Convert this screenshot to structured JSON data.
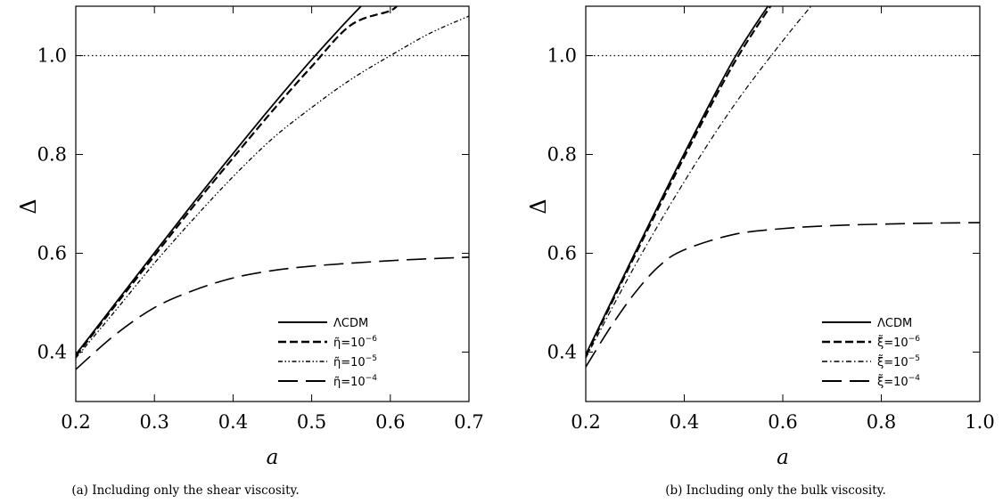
{
  "chart_data": [
    {
      "type": "line",
      "caption": "(a) Including only the shear viscosity.",
      "xlabel": "a",
      "ylabel": "Δ",
      "xlim": [
        0.2,
        0.7
      ],
      "ylim": [
        0.3,
        1.1
      ],
      "x_ticks": [
        "0.2",
        "0.3",
        "0.4",
        "0.5",
        "0.6",
        "0.7"
      ],
      "y_ticks": [
        "0.4",
        "0.6",
        "0.8",
        "1.0"
      ],
      "reference_line": {
        "y": 1.0,
        "style": "dotted"
      },
      "legend_position": "bottom-right",
      "series": [
        {
          "name": "ΛCDM",
          "base": "",
          "exp": "",
          "style": "solid",
          "x": [
            0.2,
            0.25,
            0.3,
            0.35,
            0.4,
            0.45,
            0.5,
            0.55,
            0.6
          ],
          "y": [
            0.395,
            0.498,
            0.601,
            0.703,
            0.802,
            0.899,
            0.992,
            1.079,
            1.16
          ]
        },
        {
          "name": "η̃=10−6",
          "base": "η̃=10",
          "exp": "−6",
          "style": "dashed",
          "x": [
            0.2,
            0.25,
            0.3,
            0.35,
            0.4,
            0.45,
            0.5,
            0.55,
            0.6,
            0.61
          ],
          "y": [
            0.392,
            0.494,
            0.595,
            0.696,
            0.793,
            0.888,
            0.978,
            1.062,
            1.091,
            1.105
          ]
        },
        {
          "name": "η̃=10−5",
          "base": "η̃=10",
          "exp": "−5",
          "style": "dashdotdot",
          "x": [
            0.2,
            0.25,
            0.3,
            0.35,
            0.4,
            0.45,
            0.5,
            0.55,
            0.6,
            0.65,
            0.7
          ],
          "y": [
            0.388,
            0.483,
            0.58,
            0.67,
            0.755,
            0.832,
            0.895,
            0.952,
            1.0,
            1.045,
            1.08
          ]
        },
        {
          "name": "η̃=10−4",
          "base": "η̃=10",
          "exp": "−4",
          "style": "longdash",
          "x": [
            0.2,
            0.25,
            0.3,
            0.35,
            0.4,
            0.45,
            0.5,
            0.55,
            0.6,
            0.65,
            0.7
          ],
          "y": [
            0.365,
            0.435,
            0.49,
            0.525,
            0.55,
            0.565,
            0.574,
            0.58,
            0.585,
            0.589,
            0.592
          ]
        }
      ]
    },
    {
      "type": "line",
      "caption": "(b) Including only the bulk viscosity.",
      "xlabel": "a",
      "ylabel": "Δ",
      "xlim": [
        0.2,
        1.0
      ],
      "ylim": [
        0.3,
        1.1
      ],
      "x_ticks": [
        "0.2",
        "0.4",
        "0.6",
        "0.8",
        "1.0"
      ],
      "y_ticks": [
        "0.4",
        "0.6",
        "0.8",
        "1.0"
      ],
      "reference_line": {
        "y": 1.0,
        "style": "dotted"
      },
      "legend_position": "bottom-right",
      "series": [
        {
          "name": "ΛCDM",
          "base": "",
          "exp": "",
          "style": "solid",
          "x": [
            0.2,
            0.3,
            0.4,
            0.5,
            0.58
          ],
          "y": [
            0.395,
            0.601,
            0.802,
            0.992,
            1.115
          ]
        },
        {
          "name": "ξ̃=10−6",
          "base": "ξ̃=10",
          "exp": "−6",
          "style": "dashed",
          "x": [
            0.2,
            0.3,
            0.4,
            0.5,
            0.585
          ],
          "y": [
            0.392,
            0.596,
            0.795,
            0.983,
            1.115
          ]
        },
        {
          "name": "ξ̃=10−5",
          "base": "ξ̃=10",
          "exp": "−5",
          "style": "dashdot",
          "x": [
            0.2,
            0.3,
            0.4,
            0.5,
            0.6,
            0.67
          ],
          "y": [
            0.388,
            0.575,
            0.745,
            0.898,
            1.03,
            1.115
          ]
        },
        {
          "name": "ξ̃=10−4",
          "base": "ξ̃=10",
          "exp": "−4",
          "style": "longdash",
          "x": [
            0.2,
            0.25,
            0.3,
            0.35,
            0.4,
            0.5,
            0.6,
            0.7,
            0.8,
            0.9,
            1.0
          ],
          "y": [
            0.37,
            0.45,
            0.52,
            0.575,
            0.607,
            0.638,
            0.65,
            0.656,
            0.659,
            0.661,
            0.662
          ]
        }
      ]
    }
  ]
}
